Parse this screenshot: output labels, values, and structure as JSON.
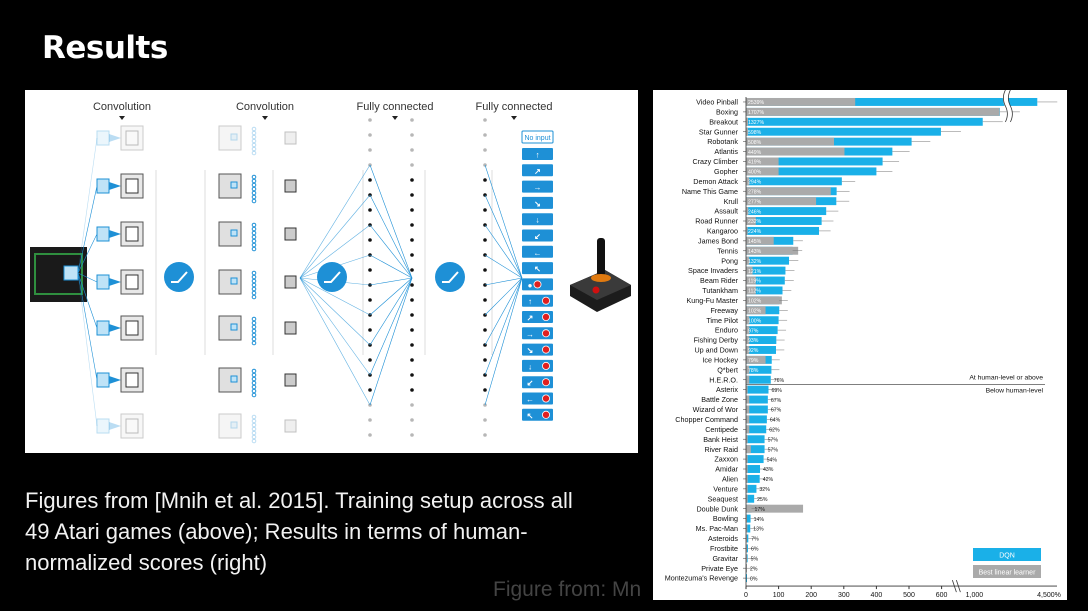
{
  "slide": {
    "title": "Results",
    "caption": "Figures from [Mnih et al. 2015]. Training setup across all 49 Atari games (above); Results in terms of human-normalized scores (right)",
    "footer_note": "Figure from: Mn"
  },
  "architecture": {
    "layer_labels": [
      "Convolution",
      "Convolution",
      "Fully connected",
      "Fully connected"
    ],
    "no_input_label": "No input",
    "action_icons": [
      "arrow-up-icon",
      "arrow-up-right-icon",
      "arrow-right-icon",
      "arrow-down-right-icon",
      "arrow-down-icon",
      "arrow-down-left-icon",
      "arrow-left-icon",
      "arrow-up-left-icon",
      "fire-icon",
      "up-fire-icon",
      "up-right-fire-icon",
      "right-fire-icon",
      "down-right-fire-icon",
      "down-fire-icon",
      "down-left-fire-icon",
      "left-fire-icon",
      "up-left-fire-icon"
    ],
    "accent_color": "#1e90d6"
  },
  "chart_data": {
    "type": "bar",
    "orientation": "horizontal",
    "title": "",
    "xlabel": "",
    "categories": [
      "Video Pinball",
      "Boxing",
      "Breakout",
      "Star Gunner",
      "Robotank",
      "Atlantis",
      "Crazy Climber",
      "Gopher",
      "Demon Attack",
      "Name This Game",
      "Krull",
      "Assault",
      "Road Runner",
      "Kangaroo",
      "James Bond",
      "Tennis",
      "Pong",
      "Space Invaders",
      "Beam Rider",
      "Tutankham",
      "Kung-Fu Master",
      "Freeway",
      "Time Pilot",
      "Enduro",
      "Fishing Derby",
      "Up and Down",
      "Ice Hockey",
      "Q*bert",
      "H.E.R.O.",
      "Asterix",
      "Battle Zone",
      "Wizard of Wor",
      "Chopper Command",
      "Centipede",
      "Bank Heist",
      "River Raid",
      "Zaxxon",
      "Amidar",
      "Alien",
      "Venture",
      "Seaquest",
      "Double Dunk",
      "Bowling",
      "Ms. Pac-Man",
      "Asteroids",
      "Frostbite",
      "Gravitar",
      "Private Eye",
      "Montezuma's Revenge"
    ],
    "value_labels": [
      "2539%",
      "1707%",
      "1327%",
      "598%",
      "508%",
      "449%",
      "419%",
      "400%",
      "294%",
      "278%",
      "277%",
      "246%",
      "232%",
      "224%",
      "145%",
      "143%",
      "132%",
      "121%",
      "119%",
      "112%",
      "102%",
      "102%",
      "100%",
      "97%",
      "93%",
      "92%",
      "79%",
      "78%",
      "76%",
      "69%",
      "67%",
      "67%",
      "64%",
      "62%",
      "57%",
      "57%",
      "54%",
      "43%",
      "42%",
      "32%",
      "25%",
      "17%",
      "14%",
      "13%",
      "7%",
      "6%",
      "5%",
      "2%",
      "0%"
    ],
    "series": [
      {
        "name": "DQN",
        "color": "#1ab0e8",
        "values": [
          2539,
          1707,
          1327,
          598,
          508,
          449,
          419,
          400,
          294,
          278,
          277,
          246,
          232,
          224,
          145,
          143,
          132,
          121,
          119,
          112,
          102,
          102,
          100,
          97,
          93,
          92,
          79,
          78,
          76,
          69,
          67,
          67,
          64,
          62,
          57,
          57,
          54,
          43,
          42,
          32,
          25,
          17,
          14,
          13,
          7,
          6,
          5,
          2,
          0
        ]
      },
      {
        "name": "Best linear learner",
        "color": "#aaaaaa",
        "values": [
          335,
          1700,
          6,
          6,
          270,
          302,
          100,
          100,
          10,
          260,
          215,
          7,
          30,
          5,
          85,
          160,
          10,
          20,
          30,
          30,
          110,
          60,
          10,
          10,
          10,
          10,
          60,
          10,
          10,
          5,
          10,
          10,
          10,
          10,
          5,
          15,
          5,
          5,
          5,
          5,
          5,
          175,
          3,
          4,
          3,
          3,
          3,
          3,
          0
        ]
      }
    ],
    "x_ticks": [
      "0",
      "100",
      "200",
      "300",
      "400",
      "500",
      "600",
      "1,000",
      "4,500%"
    ],
    "break_x": 630,
    "human_level_labels": {
      "above": "At human-level or above",
      "below": "Below human-level"
    },
    "legend": {
      "position": "bottom-right",
      "entries": [
        "DQN",
        "Best linear learner"
      ]
    }
  }
}
